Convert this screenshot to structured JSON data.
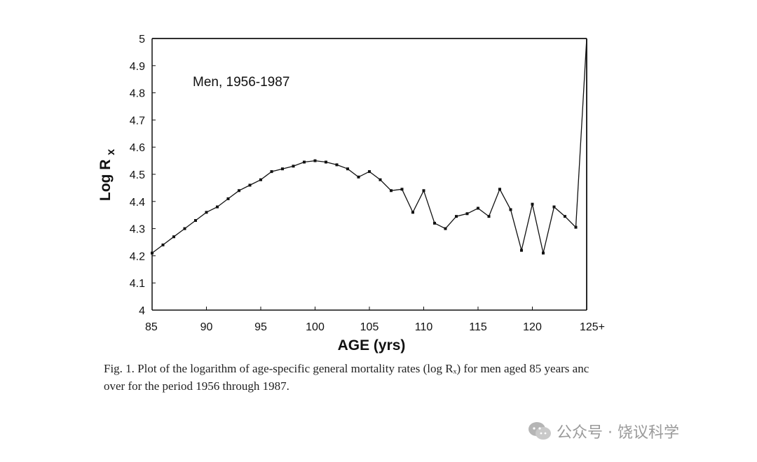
{
  "chart_data": {
    "type": "line",
    "annotation": "Men, 1956-1987",
    "xlabel": "AGE (yrs)",
    "ylabel_main": "Log R",
    "ylabel_sub": "x",
    "xlim": [
      85,
      125
    ],
    "ylim": [
      4,
      5
    ],
    "x_ticks": [
      {
        "value": 85,
        "label": "85"
      },
      {
        "value": 90,
        "label": "90"
      },
      {
        "value": 95,
        "label": "95"
      },
      {
        "value": 100,
        "label": "100"
      },
      {
        "value": 105,
        "label": "105"
      },
      {
        "value": 110,
        "label": "110"
      },
      {
        "value": 115,
        "label": "115"
      },
      {
        "value": 120,
        "label": "120"
      },
      {
        "value": 125,
        "label": "125+"
      }
    ],
    "y_ticks": [
      {
        "value": 4.0,
        "label": "4"
      },
      {
        "value": 4.1,
        "label": "4.1"
      },
      {
        "value": 4.2,
        "label": "4.2"
      },
      {
        "value": 4.3,
        "label": "4.3"
      },
      {
        "value": 4.4,
        "label": "4.4"
      },
      {
        "value": 4.5,
        "label": "4.5"
      },
      {
        "value": 4.6,
        "label": "4.6"
      },
      {
        "value": 4.7,
        "label": "4.7"
      },
      {
        "value": 4.8,
        "label": "4.8"
      },
      {
        "value": 4.9,
        "label": "4.9"
      },
      {
        "value": 5.0,
        "label": "5"
      }
    ],
    "grid": false,
    "series": [
      {
        "x": [
          85,
          86,
          87,
          88,
          89,
          90,
          91,
          92,
          93,
          94,
          95,
          96,
          97,
          98,
          99,
          100,
          101,
          102,
          103,
          104,
          105,
          106,
          107,
          108,
          109,
          110,
          111,
          112,
          113,
          114,
          115,
          116,
          117,
          118,
          119,
          120,
          121,
          122,
          123,
          124,
          125
        ],
        "y": [
          4.21,
          4.24,
          4.27,
          4.3,
          4.33,
          4.36,
          4.38,
          4.41,
          4.44,
          4.46,
          4.48,
          4.51,
          4.52,
          4.53,
          4.545,
          4.55,
          4.545,
          4.535,
          4.52,
          4.49,
          4.51,
          4.48,
          4.44,
          4.445,
          4.36,
          4.44,
          4.32,
          4.3,
          4.345,
          4.355,
          4.375,
          4.345,
          4.445,
          4.37,
          4.22,
          4.39,
          4.21,
          4.38,
          4.345,
          4.305,
          5.0
        ],
        "markers": [
          true,
          true,
          true,
          true,
          true,
          true,
          true,
          true,
          true,
          true,
          true,
          true,
          true,
          true,
          true,
          true,
          true,
          true,
          true,
          true,
          true,
          true,
          true,
          true,
          true,
          true,
          true,
          true,
          true,
          true,
          true,
          true,
          true,
          true,
          true,
          true,
          true,
          true,
          true,
          true,
          false
        ]
      }
    ]
  },
  "caption": {
    "line1": "Fig. 1. Plot of the logarithm of age-specific general mortality rates (log Rₓ) for men aged 85 years anc",
    "line2": "over for the period 1956 through 1987."
  },
  "watermark": {
    "text": "公众号 · 饶议科学"
  }
}
